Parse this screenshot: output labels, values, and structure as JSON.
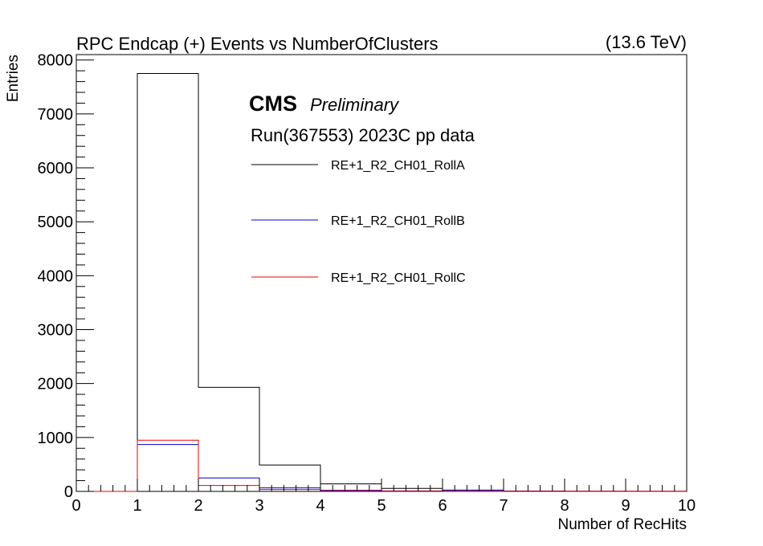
{
  "chart_data": {
    "type": "histogram",
    "title": "RPC Endcap (+)  Events vs NumberOfClusters",
    "energy_label": "(13.6 TeV)",
    "cms_label": "CMS",
    "preliminary_label": "Preliminary",
    "run_label": "Run(367553) 2023C pp data",
    "xlabel": "Number of RecHits",
    "ylabel": "Entries",
    "xlim": [
      0,
      10
    ],
    "ylim": [
      0,
      8100
    ],
    "x_ticks": [
      0,
      1,
      2,
      3,
      4,
      5,
      6,
      7,
      8,
      9,
      10
    ],
    "y_ticks": [
      0,
      1000,
      2000,
      3000,
      4000,
      5000,
      6000,
      7000,
      8000
    ],
    "bin_edges": [
      0,
      1,
      2,
      3,
      4,
      5,
      6,
      7,
      8,
      9,
      10
    ],
    "grid": false,
    "legend_position": "top-center",
    "series": [
      {
        "name": "RE+1_R2_CH01_RollA",
        "color": "#000000",
        "values": [
          0,
          7750,
          1930,
          490,
          140,
          55,
          20,
          8,
          3,
          2
        ]
      },
      {
        "name": "RE+1_R2_CH01_RollB",
        "color": "#0000cc",
        "values": [
          0,
          870,
          250,
          65,
          20,
          10,
          25,
          5,
          2,
          1
        ]
      },
      {
        "name": "RE+1_R2_CH01_RollC",
        "color": "#ee0000",
        "values": [
          0,
          950,
          110,
          35,
          10,
          5,
          3,
          2,
          1,
          1
        ]
      }
    ]
  }
}
